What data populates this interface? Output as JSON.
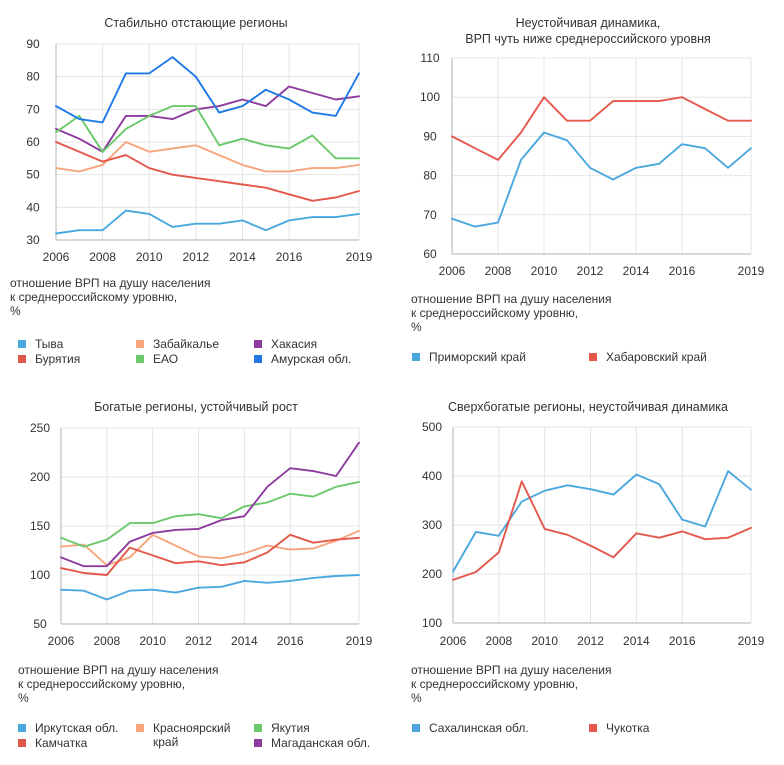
{
  "chart_data": [
    {
      "type": "line",
      "title": [
        "Стабильно отстающие регионы"
      ],
      "ylabel": [
        "отношение ВРП на душу населения",
        "к среднероссийскому уровню,",
        "%"
      ],
      "xlim": [
        2006,
        2019
      ],
      "ylim": [
        30,
        90
      ],
      "x_ticks": [
        "2006",
        "2008",
        "2010",
        "2012",
        "2014",
        "2016",
        "2019"
      ],
      "y_ticks": [
        30,
        40,
        50,
        60,
        70,
        80,
        90
      ],
      "x": [
        2006,
        2007,
        2008,
        2009,
        2010,
        2011,
        2012,
        2013,
        2014,
        2015,
        2016,
        2017,
        2018,
        2019
      ],
      "series": [
        {
          "name": "Тыва",
          "color": "#4aa8de",
          "values": [
            32,
            33,
            33,
            39,
            38,
            34,
            35,
            35,
            36,
            33,
            36,
            37,
            37,
            38
          ]
        },
        {
          "name": "Забайкалье",
          "color": "#f7a57c",
          "values": [
            52,
            51,
            53,
            60,
            57,
            58,
            59,
            56,
            53,
            51,
            51,
            52,
            52,
            53
          ]
        },
        {
          "name": "Хакасия",
          "color": "#8e3a9f",
          "values": [
            64,
            61,
            57,
            68,
            68,
            67,
            70,
            71,
            73,
            71,
            77,
            75,
            73,
            74
          ]
        },
        {
          "name": "Бурятия",
          "color": "#e4584b",
          "values": [
            60,
            57,
            54,
            56,
            52,
            50,
            49,
            48,
            47,
            46,
            44,
            42,
            43,
            45
          ]
        },
        {
          "name": "ЕАО",
          "color": "#6cc96b",
          "values": [
            63,
            68,
            57,
            64,
            68,
            71,
            71,
            59,
            61,
            59,
            58,
            62,
            55,
            55
          ]
        },
        {
          "name": "Амурская обл.",
          "color": "#1f78e8",
          "values": [
            71,
            67,
            66,
            81,
            81,
            86,
            80,
            69,
            71,
            76,
            73,
            69,
            68,
            81
          ]
        }
      ]
    },
    {
      "type": "line",
      "title": [
        "Неустойчивая динамика,",
        "ВРП чуть ниже среднероссийского уровня"
      ],
      "ylabel": [
        "отношение ВРП на душу населения",
        "к среднероссийскому уровню,",
        "%"
      ],
      "xlim": [
        2006,
        2019
      ],
      "ylim": [
        60,
        110
      ],
      "x_ticks": [
        "2006",
        "2008",
        "2010",
        "2012",
        "2014",
        "2016",
        "2019"
      ],
      "y_ticks": [
        60,
        70,
        80,
        90,
        100,
        110
      ],
      "x": [
        2006,
        2007,
        2008,
        2009,
        2010,
        2011,
        2012,
        2013,
        2014,
        2015,
        2016,
        2017,
        2018,
        2019
      ],
      "series": [
        {
          "name": "Приморский край",
          "color": "#4aa8de",
          "values": [
            69,
            67,
            68,
            84,
            91,
            89,
            82,
            79,
            82,
            83,
            88,
            87,
            82,
            87
          ]
        },
        {
          "name": "Хабаровский край",
          "color": "#e4584b",
          "values": [
            90,
            87,
            84,
            91,
            100,
            94,
            94,
            99,
            99,
            99,
            100,
            97,
            94,
            94
          ]
        }
      ]
    },
    {
      "type": "line",
      "title": [
        "Богатые регионы, устойчивый рост"
      ],
      "ylabel": [
        "отношение ВРП на душу населения",
        "к среднероссийскому уровню,",
        "%"
      ],
      "xlim": [
        2006,
        2019
      ],
      "ylim": [
        50,
        250
      ],
      "x_ticks": [
        "2006",
        "2008",
        "2010",
        "2012",
        "2014",
        "2016",
        "2019"
      ],
      "y_ticks": [
        50,
        100,
        150,
        200,
        250
      ],
      "x": [
        2006,
        2007,
        2008,
        2009,
        2010,
        2011,
        2012,
        2013,
        2014,
        2015,
        2016,
        2017,
        2018,
        2019
      ],
      "series": [
        {
          "name": "Иркутская обл.",
          "color": "#4aa8de",
          "values": [
            85,
            84,
            75,
            84,
            85,
            82,
            87,
            88,
            94,
            92,
            94,
            97,
            99,
            100
          ]
        },
        {
          "name": "Красноярский край",
          "color": "#f7a57c",
          "values": [
            129,
            131,
            110,
            118,
            141,
            130,
            119,
            117,
            122,
            130,
            126,
            127,
            135,
            145
          ]
        },
        {
          "name": "Якутия",
          "color": "#6cc96b",
          "values": [
            138,
            129,
            136,
            153,
            153,
            160,
            162,
            158,
            170,
            174,
            183,
            180,
            190,
            195
          ]
        },
        {
          "name": "Камчатка",
          "color": "#e4584b",
          "values": [
            107,
            102,
            100,
            128,
            120,
            112,
            114,
            110,
            113,
            123,
            141,
            133,
            136,
            138
          ]
        },
        {
          "name": "Магаданская обл.",
          "color": "#8e3a9f",
          "values": [
            118,
            109,
            109,
            134,
            143,
            146,
            147,
            156,
            160,
            190,
            209,
            206,
            201,
            235
          ]
        }
      ]
    },
    {
      "type": "line",
      "title": [
        "Сверхбогатые регионы, неустойчивая динамика"
      ],
      "ylabel": [
        "отношение ВРП на душу населения",
        "к среднероссийскому уровню,",
        "%"
      ],
      "xlim": [
        2006,
        2019
      ],
      "ylim": [
        100,
        500
      ],
      "x_ticks": [
        "2006",
        "2008",
        "2010",
        "2012",
        "2014",
        "2016",
        "2019"
      ],
      "y_ticks": [
        100,
        200,
        300,
        400,
        500
      ],
      "x": [
        2006,
        2007,
        2008,
        2009,
        2010,
        2011,
        2012,
        2013,
        2014,
        2015,
        2016,
        2017,
        2018,
        2019
      ],
      "series": [
        {
          "name": "Сахалинская обл.",
          "color": "#4aa8de",
          "values": [
            205,
            286,
            278,
            348,
            370,
            381,
            373,
            362,
            403,
            383,
            311,
            297,
            410,
            372
          ]
        },
        {
          "name": "Чукотка",
          "color": "#e4584b",
          "values": [
            188,
            204,
            244,
            389,
            292,
            280,
            258,
            234,
            283,
            274,
            287,
            271,
            274,
            294
          ]
        }
      ]
    }
  ]
}
